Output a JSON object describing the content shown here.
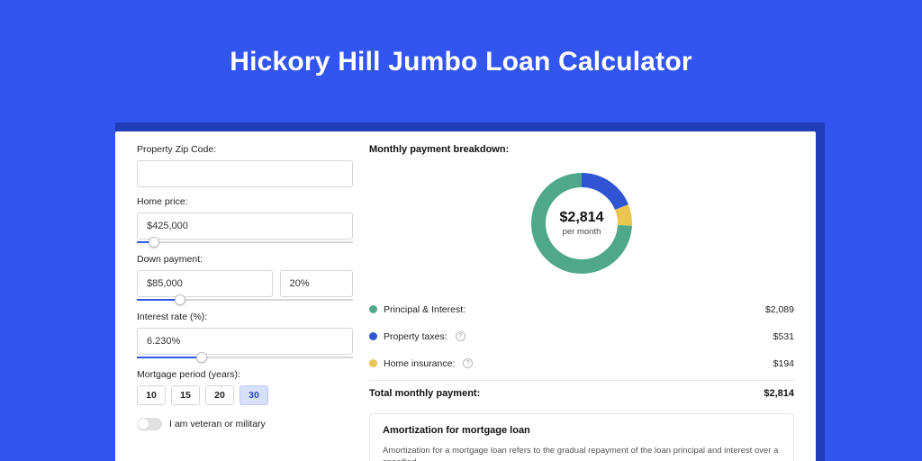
{
  "page": {
    "title": "Hickory Hill Jumbo Loan Calculator",
    "bg_color": "#3355ef",
    "card_shadow_color": "#1f3db8"
  },
  "form": {
    "zip": {
      "label": "Property Zip Code:",
      "value": ""
    },
    "home_price": {
      "label": "Home price:",
      "value": "$425,000",
      "slider_pct": 8
    },
    "down_payment": {
      "label": "Down payment:",
      "amount": "$85,000",
      "percent": "20%",
      "slider_pct": 20
    },
    "interest_rate": {
      "label": "Interest rate (%):",
      "value": "6.230%",
      "slider_pct": 30
    },
    "period": {
      "label": "Mortgage period (years):",
      "options": [
        "10",
        "15",
        "20",
        "30"
      ],
      "selected_index": 3
    },
    "veteran": {
      "label": "I am veteran or military",
      "checked": false
    }
  },
  "breakdown": {
    "heading": "Monthly payment breakdown:",
    "donut": {
      "center_value": "$2,814",
      "center_sub": "per month",
      "segments": [
        {
          "key": "principal_interest",
          "value": 2089,
          "color": "#4fa88a"
        },
        {
          "key": "property_taxes",
          "value": 531,
          "color": "#2f55d4"
        },
        {
          "key": "home_insurance",
          "value": 194,
          "color": "#eac54f"
        }
      ],
      "stroke_width": 16,
      "radius": 48
    },
    "items": [
      {
        "label": "Principal & Interest:",
        "value": "$2,089",
        "color": "#4fa88a",
        "info": false
      },
      {
        "label": "Property taxes:",
        "value": "$531",
        "color": "#2f55d4",
        "info": true
      },
      {
        "label": "Home insurance:",
        "value": "$194",
        "color": "#eac54f",
        "info": true
      }
    ],
    "total": {
      "label": "Total monthly payment:",
      "value": "$2,814"
    }
  },
  "amortization": {
    "heading": "Amortization for mortgage loan",
    "paragraph": "Amortization for a mortgage loan refers to the gradual repayment of the loan principal and interest over a specified"
  }
}
